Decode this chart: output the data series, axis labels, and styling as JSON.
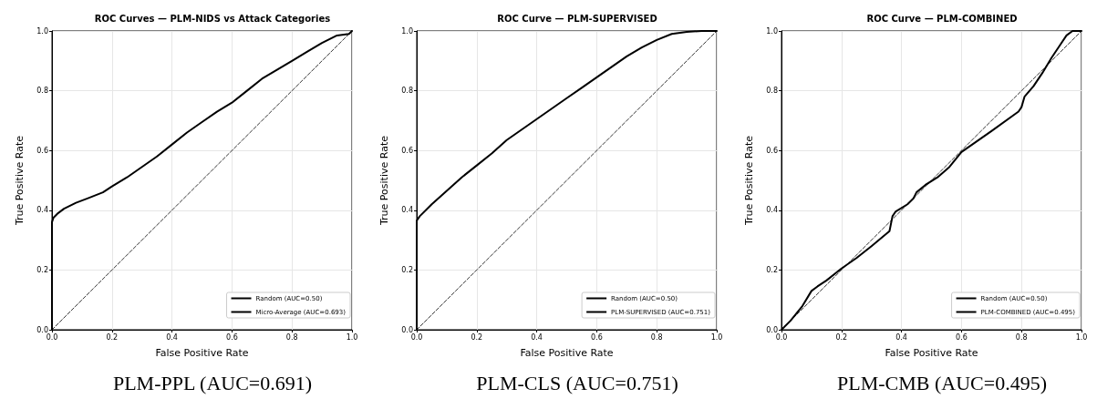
{
  "chart_data": [
    {
      "type": "line",
      "title": "ROC Curves — PLM-NIDS vs Attack Categories",
      "xlabel": "False Positive Rate",
      "ylabel": "True Positive Rate",
      "annotations": [
        "PLM-PPL (AUC=0.691)"
      ],
      "xlim": [
        0,
        1
      ],
      "ylim": [
        0,
        1
      ],
      "xticks": [
        {
          "value": 0,
          "label": "0.0"
        },
        {
          "value": 0.2,
          "label": "0.2"
        },
        {
          "value": 0.4,
          "label": "0.4"
        },
        {
          "value": 0.6,
          "label": "0.6"
        },
        {
          "value": 0.8,
          "label": "0.8"
        },
        {
          "value": 1,
          "label": "1.0"
        }
      ],
      "yticks": [
        {
          "value": 0,
          "label": "0.0"
        },
        {
          "value": 0.2,
          "label": "0.2"
        },
        {
          "value": 0.4,
          "label": "0.4"
        },
        {
          "value": 0.6,
          "label": "0.6"
        },
        {
          "value": 0.8,
          "label": "0.8"
        },
        {
          "value": 1,
          "label": "1.0"
        }
      ],
      "grid": true,
      "legend": "bottom right",
      "marker": "none",
      "series": [
        {
          "name": "Random (AUC=0.50)",
          "color": "#000000",
          "line_style": "dashed",
          "x": [
            0,
            1
          ],
          "values": [
            0,
            1
          ]
        },
        {
          "name": "Micro-Average (AUC=0.693)",
          "color": "#000000",
          "line_style": "solid",
          "x": [
            0,
            0,
            0.005,
            0.02,
            0.04,
            0.08,
            0.12,
            0.17,
            0.2,
            0.25,
            0.3,
            0.35,
            0.4,
            0.45,
            0.5,
            0.55,
            0.6,
            0.65,
            0.7,
            0.75,
            0.8,
            0.85,
            0.9,
            0.95,
            0.99,
            1
          ],
          "values": [
            0,
            0.36,
            0.375,
            0.39,
            0.405,
            0.425,
            0.44,
            0.46,
            0.48,
            0.51,
            0.545,
            0.58,
            0.62,
            0.66,
            0.695,
            0.73,
            0.76,
            0.8,
            0.84,
            0.87,
            0.9,
            0.93,
            0.96,
            0.985,
            0.99,
            1
          ]
        }
      ]
    },
    {
      "type": "line",
      "title": "ROC Curve — PLM-SUPERVISED",
      "xlabel": "False Positive Rate",
      "ylabel": "True Positive Rate",
      "annotations": [
        "PLM-CLS (AUC=0.751)"
      ],
      "xlim": [
        0,
        1
      ],
      "ylim": [
        0,
        1
      ],
      "xticks": [
        {
          "value": 0,
          "label": "0.0"
        },
        {
          "value": 0.2,
          "label": "0.2"
        },
        {
          "value": 0.4,
          "label": "0.4"
        },
        {
          "value": 0.6,
          "label": "0.6"
        },
        {
          "value": 0.8,
          "label": "0.8"
        },
        {
          "value": 1,
          "label": "1.0"
        }
      ],
      "yticks": [
        {
          "value": 0,
          "label": "0.0"
        },
        {
          "value": 0.2,
          "label": "0.2"
        },
        {
          "value": 0.4,
          "label": "0.4"
        },
        {
          "value": 0.6,
          "label": "0.6"
        },
        {
          "value": 0.8,
          "label": "0.8"
        },
        {
          "value": 1,
          "label": "1.0"
        }
      ],
      "grid": true,
      "legend": "bottom right",
      "marker": "none",
      "series": [
        {
          "name": "Random (AUC=0.50)",
          "color": "#000000",
          "line_style": "dashed",
          "x": [
            0,
            1
          ],
          "values": [
            0,
            1
          ]
        },
        {
          "name": "PLM-SUPERVISED (AUC=0.751)",
          "color": "#000000",
          "line_style": "solid",
          "x": [
            0,
            0,
            0.01,
            0.05,
            0.1,
            0.15,
            0.2,
            0.25,
            0.3,
            0.35,
            0.4,
            0.45,
            0.5,
            0.55,
            0.6,
            0.65,
            0.7,
            0.75,
            0.8,
            0.85,
            0.9,
            0.95,
            1
          ],
          "values": [
            0,
            0.365,
            0.38,
            0.42,
            0.465,
            0.51,
            0.55,
            0.59,
            0.635,
            0.67,
            0.705,
            0.74,
            0.775,
            0.81,
            0.845,
            0.88,
            0.915,
            0.945,
            0.97,
            0.99,
            0.997,
            1,
            1
          ]
        }
      ]
    },
    {
      "type": "line",
      "title": "ROC Curve — PLM-COMBINED",
      "xlabel": "False Positive Rate",
      "ylabel": "True Positive Rate",
      "annotations": [
        "PLM-CMB (AUC=0.495)"
      ],
      "xlim": [
        0,
        1
      ],
      "ylim": [
        0,
        1
      ],
      "xticks": [
        {
          "value": 0,
          "label": "0.0"
        },
        {
          "value": 0.2,
          "label": "0.2"
        },
        {
          "value": 0.4,
          "label": "0.4"
        },
        {
          "value": 0.6,
          "label": "0.6"
        },
        {
          "value": 0.8,
          "label": "0.8"
        },
        {
          "value": 1,
          "label": "1.0"
        }
      ],
      "yticks": [
        {
          "value": 0,
          "label": "0.0"
        },
        {
          "value": 0.2,
          "label": "0.2"
        },
        {
          "value": 0.4,
          "label": "0.4"
        },
        {
          "value": 0.6,
          "label": "0.6"
        },
        {
          "value": 0.8,
          "label": "0.8"
        },
        {
          "value": 1,
          "label": "1.0"
        }
      ],
      "grid": true,
      "legend": "bottom right",
      "marker": "none",
      "series": [
        {
          "name": "Random (AUC=0.50)",
          "color": "#000000",
          "line_style": "dashed",
          "x": [
            0,
            1
          ],
          "values": [
            0,
            1
          ]
        },
        {
          "name": "PLM-COMBINED (AUC=0.495)",
          "color": "#000000",
          "line_style": "solid",
          "x": [
            0,
            0.03,
            0.07,
            0.1,
            0.12,
            0.15,
            0.2,
            0.25,
            0.3,
            0.36,
            0.37,
            0.38,
            0.42,
            0.44,
            0.45,
            0.48,
            0.52,
            0.56,
            0.6,
            0.7,
            0.79,
            0.8,
            0.81,
            0.84,
            0.87,
            0.9,
            0.93,
            0.95,
            0.97,
            1
          ],
          "values": [
            0,
            0.03,
            0.08,
            0.13,
            0.145,
            0.165,
            0.205,
            0.24,
            0.28,
            0.33,
            0.38,
            0.395,
            0.42,
            0.44,
            0.46,
            0.485,
            0.51,
            0.545,
            0.595,
            0.665,
            0.73,
            0.745,
            0.78,
            0.815,
            0.86,
            0.91,
            0.955,
            0.985,
            1,
            1
          ]
        }
      ]
    }
  ]
}
